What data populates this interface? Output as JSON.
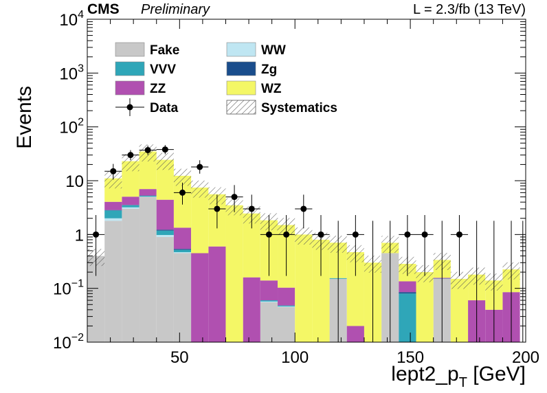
{
  "chart_data": {
    "type": "bar",
    "experiment": "CMS",
    "status": "Preliminary",
    "lumi_label": "L = 2.3/fb (13 TeV)",
    "xlabel_main": "lept2_p",
    "xlabel_sub": "T",
    "xlabel_unit": " [GeV]",
    "ylabel": "Events",
    "y_log": true,
    "xlim": [
      10,
      200
    ],
    "ylim": [
      0.01,
      10000
    ],
    "x_ticks": [
      50,
      100,
      150,
      200
    ],
    "y_ticks": [
      {
        "v": 0.01,
        "base": "10",
        "exp": "−2"
      },
      {
        "v": 0.1,
        "base": "10",
        "exp": "−1"
      },
      {
        "v": 1,
        "base": "1",
        "exp": ""
      },
      {
        "v": 10,
        "base": "10",
        "exp": ""
      },
      {
        "v": 100,
        "base": "10",
        "exp": "2"
      },
      {
        "v": 1000,
        "base": "10",
        "exp": "3"
      },
      {
        "v": 10000,
        "base": "10",
        "exp": "4"
      }
    ],
    "bin_edges": [
      10,
      17.5,
      25,
      32.5,
      40,
      47.5,
      55,
      62.5,
      70,
      77.5,
      85,
      92.5,
      100,
      107.5,
      115,
      122.5,
      130,
      137.5,
      145,
      152.5,
      160,
      167.5,
      175,
      182.5,
      190,
      197.5,
      200
    ],
    "stack": [
      {
        "name": "Fake",
        "color": "#c8c8c8",
        "values": [
          0.4,
          1.8,
          3.0,
          5.0,
          0.9,
          0.45,
          0,
          0,
          0,
          0,
          0.055,
          0.045,
          0,
          0,
          0.15,
          0,
          0,
          0.45,
          0,
          0,
          0.15,
          0,
          0,
          0,
          0,
          0
        ]
      },
      {
        "name": "WW",
        "color": "#bfe6f2",
        "values": [
          0,
          0.2,
          0.2,
          0.05,
          0.08,
          0.02,
          0,
          0,
          0,
          0,
          0.002,
          0.001,
          0,
          0,
          0,
          0,
          0,
          0,
          0,
          0,
          0,
          0,
          0,
          0,
          0,
          0
        ]
      },
      {
        "name": "VVV",
        "color": "#2fa6b8",
        "values": [
          0,
          0.8,
          0.3,
          0.2,
          0.2,
          0.05,
          0,
          0,
          0,
          0,
          0.003,
          0.002,
          0,
          0,
          0.005,
          0,
          0,
          0.001,
          0.08,
          0,
          0.002,
          0,
          0,
          0,
          0,
          0
        ]
      },
      {
        "name": "Zg",
        "color": "#1a4d8c",
        "values": [
          0,
          0.05,
          0.05,
          0.05,
          0.05,
          0.02,
          0,
          0,
          0,
          0,
          0,
          0,
          0,
          0,
          0,
          0,
          0,
          0,
          0.005,
          0,
          0,
          0,
          0,
          0,
          0,
          0
        ]
      },
      {
        "name": "ZZ",
        "color": "#b050b0",
        "values": [
          0,
          1.2,
          1.5,
          1.7,
          3.2,
          0.8,
          0.45,
          0.6,
          0,
          0.16,
          0.08,
          0.055,
          0,
          0,
          0,
          0.02,
          0,
          0,
          0.05,
          0,
          0.005,
          0,
          0.06,
          0.04,
          0.085,
          0
        ]
      },
      {
        "name": "WZ",
        "color": "#f4f766",
        "values": [
          0,
          7,
          18,
          28,
          20,
          11,
          7,
          5,
          3.5,
          2.3,
          1.7,
          1.4,
          1.0,
          0.8,
          0.55,
          0.45,
          0.3,
          0.25,
          0.15,
          0.2,
          0.18,
          0.15,
          0.12,
          0.1,
          0.14,
          0
        ]
      }
    ],
    "data_points": [
      {
        "x": 13.75,
        "y": 1,
        "xerr": 3.75,
        "ylo": 0.17,
        "yhi": 2.3
      },
      {
        "x": 21.25,
        "y": 15,
        "xerr": 3.75,
        "ylo": 10.5,
        "yhi": 20.5
      },
      {
        "x": 28.75,
        "y": 30,
        "xerr": 3.75,
        "ylo": 24,
        "yhi": 37
      },
      {
        "x": 36.25,
        "y": 37,
        "xerr": 3.75,
        "ylo": 30,
        "yhi": 45
      },
      {
        "x": 43.75,
        "y": 38,
        "xerr": 3.75,
        "ylo": 31,
        "yhi": 46
      },
      {
        "x": 51.25,
        "y": 6,
        "xerr": 3.75,
        "ylo": 3.6,
        "yhi": 9.2
      },
      {
        "x": 58.75,
        "y": 18,
        "xerr": 3.75,
        "ylo": 13.5,
        "yhi": 24
      },
      {
        "x": 66.25,
        "y": 3,
        "xerr": 3.75,
        "ylo": 1.3,
        "yhi": 5.5
      },
      {
        "x": 73.75,
        "y": 5,
        "xerr": 3.75,
        "ylo": 2.6,
        "yhi": 8.3
      },
      {
        "x": 81.25,
        "y": 3,
        "xerr": 3.75,
        "ylo": 1.3,
        "yhi": 5.5
      },
      {
        "x": 88.75,
        "y": 1,
        "xerr": 3.75,
        "ylo": 0.17,
        "yhi": 2.3
      },
      {
        "x": 96.25,
        "y": 1,
        "xerr": 3.75,
        "ylo": 0.17,
        "yhi": 2.3
      },
      {
        "x": 103.75,
        "y": 3,
        "xerr": 3.75,
        "ylo": 1.3,
        "yhi": 5.5
      },
      {
        "x": 111.25,
        "y": 1,
        "xerr": 3.75,
        "ylo": 0.17,
        "yhi": 2.3
      },
      {
        "x": 126.25,
        "y": 1,
        "xerr": 3.75,
        "ylo": 0.17,
        "yhi": 2.3
      },
      {
        "x": 148.75,
        "y": 1,
        "xerr": 3.75,
        "ylo": 0.17,
        "yhi": 2.3
      },
      {
        "x": 156.25,
        "y": 1,
        "xerr": 3.75,
        "ylo": 0.17,
        "yhi": 2.3
      },
      {
        "x": 171.25,
        "y": 1,
        "xerr": 3.75,
        "ylo": 0.17,
        "yhi": 2.3
      }
    ],
    "empty_data_bins": [
      118.75,
      133.75,
      141.25,
      163.75,
      178.75,
      186.25,
      193.75,
      198.75
    ],
    "empty_data_yhi": 1.8,
    "systematics_rel": 0.35,
    "legend": [
      {
        "label": "Fake",
        "style": "box",
        "color": "#c8c8c8",
        "col": 0,
        "row": 0
      },
      {
        "label": "WW",
        "style": "box",
        "color": "#bfe6f2",
        "col": 1,
        "row": 0
      },
      {
        "label": "VVV",
        "style": "box",
        "color": "#2fa6b8",
        "col": 0,
        "row": 1
      },
      {
        "label": "Zg",
        "style": "box",
        "color": "#1a4d8c",
        "col": 1,
        "row": 1
      },
      {
        "label": "ZZ",
        "style": "box",
        "color": "#b050b0",
        "col": 0,
        "row": 2
      },
      {
        "label": "WZ",
        "style": "box",
        "color": "#f4f766",
        "col": 1,
        "row": 2
      },
      {
        "label": "Data",
        "style": "marker",
        "color": "#000000",
        "col": 0,
        "row": 3
      },
      {
        "label": "Systematics",
        "style": "hatch",
        "color": "#555555",
        "col": 1,
        "row": 3
      }
    ],
    "legend_position": "top-left"
  }
}
